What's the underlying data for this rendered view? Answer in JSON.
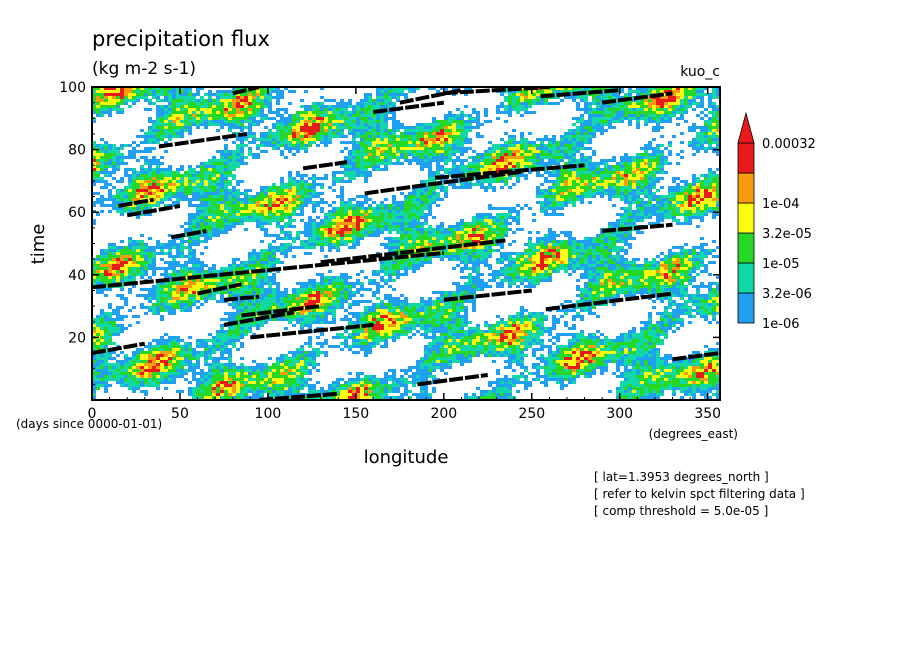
{
  "chart_data": {
    "type": "heatmap",
    "title": "precipitation flux",
    "subtitle": "(kg m-2 s-1)",
    "run_label": "kuo_c",
    "xlabel": "longitude",
    "ylabel": "time",
    "x_units": "(degrees_east)",
    "y_units": "(days since 0000-01-01)",
    "xlim": [
      0,
      357
    ],
    "ylim": [
      0,
      100
    ],
    "x_ticks": [
      0,
      50,
      100,
      150,
      200,
      250,
      300,
      350
    ],
    "y_ticks": [
      20,
      40,
      60,
      80,
      100
    ],
    "x_tick_labels": [
      "0",
      "50",
      "100",
      "150",
      "200",
      "250",
      "300",
      "350"
    ],
    "y_tick_labels": [
      "20",
      "40",
      "60",
      "80",
      "100"
    ],
    "colorbar": {
      "levels": [
        {
          "label": "1e-06",
          "color": "#1fa0f0"
        },
        {
          "label": "3.2e-06",
          "color": "#12d8a8"
        },
        {
          "label": "1e-05",
          "color": "#26d826"
        },
        {
          "label": "3.2e-05",
          "color": "#fcfc10"
        },
        {
          "label": "1e-04",
          "color": "#f89a10"
        },
        {
          "label": "0.00032",
          "color": "#e81a1a"
        }
      ],
      "extend": "max"
    },
    "overlay_segments": [
      {
        "x": [
          0,
          30
        ],
        "y": [
          15,
          18
        ]
      },
      {
        "x": [
          0,
          200
        ],
        "y": [
          36,
          47
        ]
      },
      {
        "x": [
          130,
          235
        ],
        "y": [
          44,
          51
        ]
      },
      {
        "x": [
          90,
          160
        ],
        "y": [
          20,
          24
        ]
      },
      {
        "x": [
          75,
          115
        ],
        "y": [
          24,
          28
        ]
      },
      {
        "x": [
          75,
          95
        ],
        "y": [
          32,
          33
        ]
      },
      {
        "x": [
          60,
          85
        ],
        "y": [
          34,
          37
        ]
      },
      {
        "x": [
          85,
          130
        ],
        "y": [
          27,
          30
        ]
      },
      {
        "x": [
          200,
          250
        ],
        "y": [
          32,
          35
        ]
      },
      {
        "x": [
          258,
          330
        ],
        "y": [
          29,
          34
        ]
      },
      {
        "x": [
          290,
          330
        ],
        "y": [
          54,
          56
        ]
      },
      {
        "x": [
          330,
          357
        ],
        "y": [
          13,
          15
        ]
      },
      {
        "x": [
          95,
          140
        ],
        "y": [
          0,
          2
        ]
      },
      {
        "x": [
          185,
          225
        ],
        "y": [
          5,
          8
        ]
      },
      {
        "x": [
          45,
          65
        ],
        "y": [
          52,
          54
        ]
      },
      {
        "x": [
          15,
          35
        ],
        "y": [
          62,
          64
        ]
      },
      {
        "x": [
          20,
          50
        ],
        "y": [
          59,
          62
        ]
      },
      {
        "x": [
          155,
          245
        ],
        "y": [
          66,
          73
        ]
      },
      {
        "x": [
          195,
          280
        ],
        "y": [
          71,
          75
        ]
      },
      {
        "x": [
          120,
          145
        ],
        "y": [
          74,
          76
        ]
      },
      {
        "x": [
          38,
          88
        ],
        "y": [
          81,
          85
        ]
      },
      {
        "x": [
          160,
          200
        ],
        "y": [
          92,
          95
        ]
      },
      {
        "x": [
          175,
          210
        ],
        "y": [
          95,
          99
        ]
      },
      {
        "x": [
          200,
          260
        ],
        "y": [
          98,
          100
        ]
      },
      {
        "x": [
          255,
          300
        ],
        "y": [
          97,
          99
        ]
      },
      {
        "x": [
          290,
          330
        ],
        "y": [
          95,
          98
        ]
      },
      {
        "x": [
          80,
          95
        ],
        "y": [
          98,
          100
        ]
      }
    ]
  },
  "notes": [
    "[ lat=1.3953 degrees_north ]",
    "[ refer to kelvin spct filtering data ]",
    "[ comp threshold = 5.0e-05 ]"
  ]
}
